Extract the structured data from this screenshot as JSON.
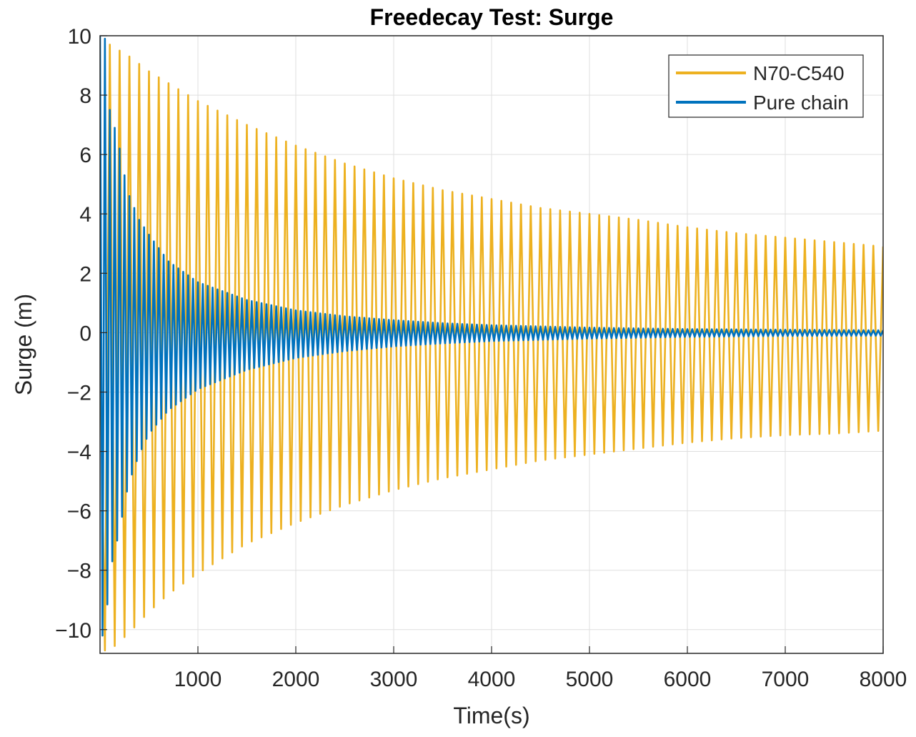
{
  "chart_data": {
    "type": "line",
    "title": "Freedecay Test: Surge",
    "xlabel": "Time(s)",
    "ylabel": "Surge (m)",
    "xlim": [
      0,
      8000
    ],
    "ylim": [
      -10.8,
      10
    ],
    "xticks": [
      1000,
      2000,
      3000,
      4000,
      5000,
      6000,
      7000,
      8000
    ],
    "yticks": [
      -10,
      -8,
      -6,
      -4,
      -2,
      0,
      2,
      4,
      6,
      8,
      10
    ],
    "ytick_labels": [
      "−10",
      "−8",
      "−6",
      "−4",
      "−2",
      "0",
      "2",
      "4",
      "6",
      "8",
      "10"
    ],
    "grid": true,
    "legend_position": "top-right",
    "series": [
      {
        "name": "N70-C540",
        "color": "#EDB120",
        "period_s": 100,
        "initial_value": 0,
        "envelope": {
          "t": [
            100,
            200,
            300,
            500,
            700,
            1000,
            1500,
            2000,
            2500,
            3000,
            3500,
            4000,
            4500,
            5000,
            5500,
            6000,
            6500,
            7000,
            7500,
            8000
          ],
          "max": [
            9.7,
            9.5,
            9.3,
            8.8,
            8.4,
            7.8,
            7.0,
            6.3,
            5.7,
            5.2,
            4.8,
            4.5,
            4.2,
            4.0,
            3.8,
            3.55,
            3.35,
            3.2,
            3.05,
            2.9
          ],
          "min": [
            -10.7,
            -10.4,
            -10.1,
            -9.4,
            -8.8,
            -8.1,
            -7.1,
            -6.4,
            -5.8,
            -5.3,
            -4.9,
            -4.6,
            -4.3,
            -4.1,
            -3.9,
            -3.7,
            -3.55,
            -3.45,
            -3.4,
            -3.3
          ]
        }
      },
      {
        "name": "Pure chain",
        "color": "#0072BD",
        "period_s": 50,
        "initial_value": 10,
        "envelope": {
          "t": [
            50,
            100,
            150,
            200,
            250,
            300,
            400,
            500,
            700,
            1000,
            1500,
            2000,
            2500,
            3000,
            3500,
            4000,
            5000,
            6000,
            7000,
            8000
          ],
          "max": [
            9.9,
            7.5,
            6.9,
            6.2,
            5.3,
            4.6,
            3.8,
            3.3,
            2.4,
            1.7,
            1.1,
            0.75,
            0.55,
            0.42,
            0.32,
            0.25,
            0.17,
            0.12,
            0.1,
            0.08
          ],
          "min": [
            -10.2,
            -8.1,
            -7.3,
            -6.7,
            -5.7,
            -5.0,
            -4.1,
            -3.4,
            -2.6,
            -1.9,
            -1.25,
            -0.85,
            -0.62,
            -0.46,
            -0.36,
            -0.28,
            -0.2,
            -0.14,
            -0.11,
            -0.1
          ]
        }
      }
    ]
  }
}
